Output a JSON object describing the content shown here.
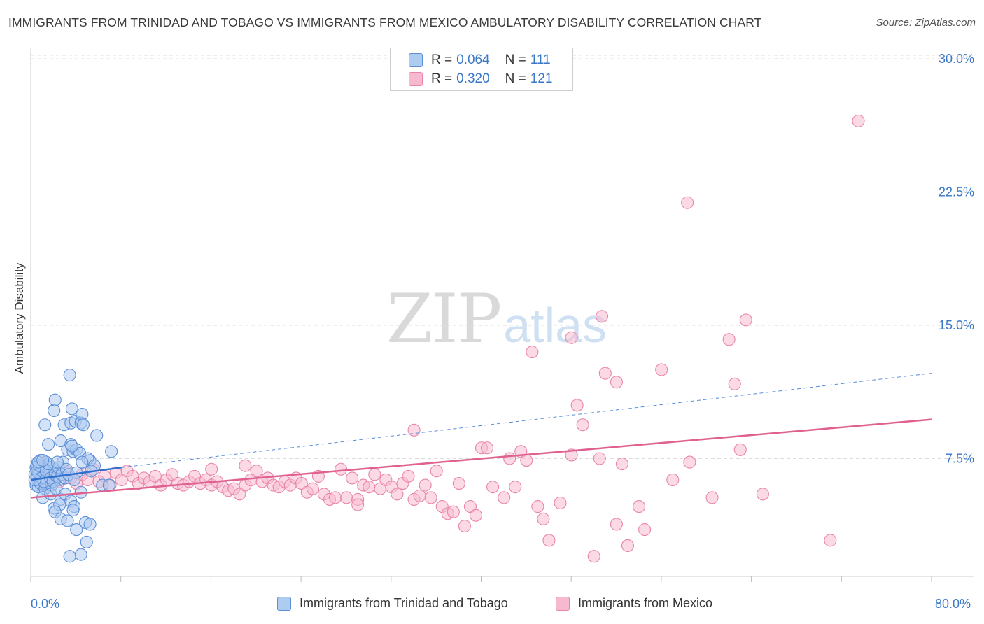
{
  "title": "IMMIGRANTS FROM TRINIDAD AND TOBAGO VS IMMIGRANTS FROM MEXICO AMBULATORY DISABILITY CORRELATION CHART",
  "source": "Source: ZipAtlas.com",
  "watermark": {
    "zip": "ZIP",
    "atlas": "atlas"
  },
  "legend": {
    "rows": [
      {
        "r_label": "R =",
        "r_value": "0.064",
        "n_label": "N =",
        "n_value": "111"
      },
      {
        "r_label": "R =",
        "r_value": "0.320",
        "n_label": "N =",
        "n_value": "121"
      }
    ]
  },
  "colors": {
    "blue_fill": "#aecbf0",
    "blue_stroke": "#5b8fd6",
    "blue_line": "#2e6fcf",
    "pink_fill": "#f7b9cf",
    "pink_stroke": "#e985aa",
    "pink_line": "#e0608f",
    "axis_text": "#3b78c8",
    "grid": "#dddddd"
  },
  "chart_data": {
    "type": "scatter",
    "title": "IMMIGRANTS FROM TRINIDAD AND TOBAGO VS IMMIGRANTS FROM MEXICO AMBULATORY DISABILITY CORRELATION CHART",
    "xlabel": "",
    "ylabel": "Ambulatory Disability",
    "xlim": [
      0,
      80
    ],
    "ylim": [
      0,
      31
    ],
    "x_tick_labels": [
      "0.0%",
      "80.0%"
    ],
    "y_ticks": [
      7.5,
      15.0,
      22.5,
      30.0
    ],
    "y_tick_labels": [
      "7.5%",
      "15.0%",
      "22.5%",
      "30.0%"
    ],
    "grid": true,
    "legend_position": "top-center",
    "series": [
      {
        "name": "Immigrants from Trinidad and Tobago",
        "r": 0.064,
        "n": 111,
        "trend": {
          "x0": 0,
          "y0": 6.3,
          "x1": 8,
          "y1": 7.0,
          "dashed_to_x": 80,
          "dashed_to_y": 12.3
        },
        "points": [
          [
            0.3,
            6.6
          ],
          [
            0.5,
            7.2
          ],
          [
            0.6,
            6.2
          ],
          [
            0.7,
            6.9
          ],
          [
            0.8,
            7.4
          ],
          [
            0.9,
            6.4
          ],
          [
            1.0,
            7.1
          ],
          [
            1.1,
            6.0
          ],
          [
            1.2,
            6.7
          ],
          [
            1.3,
            7.3
          ],
          [
            0.4,
            6.0
          ],
          [
            0.6,
            5.9
          ],
          [
            0.8,
            6.8
          ],
          [
            1.0,
            6.3
          ],
          [
            1.2,
            6.1
          ],
          [
            1.4,
            6.9
          ],
          [
            1.5,
            6.5
          ],
          [
            1.6,
            7.1
          ],
          [
            1.7,
            6.2
          ],
          [
            1.8,
            6.8
          ],
          [
            0.5,
            6.5
          ],
          [
            0.7,
            6.3
          ],
          [
            0.9,
            7.0
          ],
          [
            1.1,
            6.6
          ],
          [
            1.3,
            6.4
          ],
          [
            1.5,
            6.1
          ],
          [
            1.7,
            7.0
          ],
          [
            1.9,
            6.5
          ],
          [
            2.0,
            6.3
          ],
          [
            2.1,
            6.9
          ],
          [
            0.4,
            7.0
          ],
          [
            0.6,
            6.7
          ],
          [
            0.8,
            6.1
          ],
          [
            1.0,
            6.9
          ],
          [
            1.2,
            5.8
          ],
          [
            1.4,
            6.3
          ],
          [
            1.6,
            6.6
          ],
          [
            1.8,
            6.0
          ],
          [
            2.0,
            6.7
          ],
          [
            2.2,
            6.4
          ],
          [
            0.5,
            6.8
          ],
          [
            0.7,
            7.1
          ],
          [
            0.9,
            6.4
          ],
          [
            1.1,
            6.2
          ],
          [
            1.3,
            6.8
          ],
          [
            1.5,
            7.2
          ],
          [
            1.7,
            6.4
          ],
          [
            1.9,
            6.2
          ],
          [
            2.1,
            6.6
          ],
          [
            2.3,
            6.5
          ],
          [
            2.4,
            7.0
          ],
          [
            2.5,
            6.3
          ],
          [
            2.7,
            6.6
          ],
          [
            2.8,
            7.3
          ],
          [
            3.0,
            6.4
          ],
          [
            3.1,
            6.9
          ],
          [
            3.3,
            6.6
          ],
          [
            0.3,
            6.3
          ],
          [
            0.6,
            7.3
          ],
          [
            1.0,
            7.4
          ],
          [
            1.2,
            9.4
          ],
          [
            2.0,
            10.2
          ],
          [
            2.1,
            10.8
          ],
          [
            2.9,
            9.4
          ],
          [
            3.5,
            9.5
          ],
          [
            3.6,
            10.3
          ],
          [
            3.9,
            9.6
          ],
          [
            4.4,
            9.5
          ],
          [
            4.5,
            10.0
          ],
          [
            3.2,
            8.0
          ],
          [
            3.7,
            7.9
          ],
          [
            2.6,
            8.5
          ],
          [
            3.5,
            8.3
          ],
          [
            4.0,
            8.0
          ],
          [
            4.3,
            7.8
          ],
          [
            4.6,
            9.4
          ],
          [
            5.8,
            8.8
          ],
          [
            7.1,
            7.9
          ],
          [
            5.2,
            7.4
          ],
          [
            3.4,
            12.2
          ],
          [
            3.6,
            8.2
          ],
          [
            2.3,
            7.3
          ],
          [
            1.5,
            8.3
          ],
          [
            5.0,
            7.5
          ],
          [
            4.5,
            7.3
          ],
          [
            4.0,
            6.7
          ],
          [
            3.8,
            6.3
          ],
          [
            5.6,
            7.1
          ],
          [
            6.3,
            6.0
          ],
          [
            5.3,
            6.8
          ],
          [
            1.0,
            5.3
          ],
          [
            1.7,
            5.5
          ],
          [
            2.2,
            5.8
          ],
          [
            2.6,
            5.2
          ],
          [
            3.0,
            5.5
          ],
          [
            3.5,
            5.1
          ],
          [
            4.4,
            5.6
          ],
          [
            2.0,
            4.7
          ],
          [
            2.5,
            4.9
          ],
          [
            3.8,
            4.8
          ],
          [
            2.1,
            4.5
          ],
          [
            2.6,
            4.1
          ],
          [
            3.2,
            4.0
          ],
          [
            3.7,
            4.6
          ],
          [
            4.8,
            3.9
          ],
          [
            5.2,
            3.8
          ],
          [
            4.0,
            3.5
          ],
          [
            4.9,
            2.8
          ],
          [
            4.4,
            2.1
          ],
          [
            3.4,
            2.0
          ],
          [
            6.9,
            6.0
          ]
        ]
      },
      {
        "name": "Immigrants from Mexico",
        "r": 0.32,
        "n": 121,
        "trend": {
          "x0": 0,
          "y0": 5.3,
          "x1": 80,
          "y1": 9.7
        },
        "points": [
          [
            1.0,
            6.4
          ],
          [
            1.5,
            6.0
          ],
          [
            2.0,
            6.7
          ],
          [
            2.5,
            6.2
          ],
          [
            3.0,
            6.8
          ],
          [
            3.5,
            6.4
          ],
          [
            4.0,
            6.1
          ],
          [
            4.5,
            6.6
          ],
          [
            5.0,
            6.3
          ],
          [
            5.5,
            6.9
          ],
          [
            6.0,
            6.2
          ],
          [
            6.5,
            6.5
          ],
          [
            7.0,
            6.0
          ],
          [
            7.5,
            6.7
          ],
          [
            8.0,
            6.3
          ],
          [
            8.5,
            6.8
          ],
          [
            9.0,
            6.5
          ],
          [
            9.5,
            6.1
          ],
          [
            10.0,
            6.4
          ],
          [
            10.5,
            6.2
          ],
          [
            11.0,
            6.5
          ],
          [
            11.5,
            6.0
          ],
          [
            12.0,
            6.3
          ],
          [
            12.5,
            6.6
          ],
          [
            13.0,
            6.1
          ],
          [
            13.5,
            6.0
          ],
          [
            14.0,
            6.2
          ],
          [
            14.5,
            6.5
          ],
          [
            15.0,
            6.1
          ],
          [
            15.5,
            6.3
          ],
          [
            16.0,
            6.0
          ],
          [
            16.5,
            6.2
          ],
          [
            17.0,
            5.9
          ],
          [
            17.5,
            5.7
          ],
          [
            18.0,
            5.8
          ],
          [
            18.5,
            5.5
          ],
          [
            19.0,
            6.0
          ],
          [
            19.5,
            6.3
          ],
          [
            20.0,
            6.8
          ],
          [
            20.5,
            6.2
          ],
          [
            21.0,
            6.4
          ],
          [
            21.5,
            6.0
          ],
          [
            22.0,
            5.9
          ],
          [
            22.5,
            6.2
          ],
          [
            23.0,
            6.0
          ],
          [
            23.5,
            6.4
          ],
          [
            24.0,
            6.1
          ],
          [
            24.5,
            5.6
          ],
          [
            25.0,
            5.8
          ],
          [
            25.5,
            6.5
          ],
          [
            26.0,
            5.5
          ],
          [
            26.5,
            5.2
          ],
          [
            27.0,
            5.3
          ],
          [
            27.5,
            6.9
          ],
          [
            28.0,
            5.3
          ],
          [
            28.5,
            6.4
          ],
          [
            29.0,
            5.2
          ],
          [
            29.5,
            6.0
          ],
          [
            30.0,
            5.9
          ],
          [
            30.5,
            6.6
          ],
          [
            31.0,
            5.8
          ],
          [
            31.5,
            6.3
          ],
          [
            32.0,
            5.9
          ],
          [
            32.5,
            5.5
          ],
          [
            33.0,
            6.1
          ],
          [
            33.5,
            6.5
          ],
          [
            34.0,
            5.2
          ],
          [
            34.5,
            5.4
          ],
          [
            35.0,
            6.0
          ],
          [
            35.5,
            5.3
          ],
          [
            36.0,
            6.8
          ],
          [
            36.5,
            4.8
          ],
          [
            37.0,
            4.4
          ],
          [
            37.5,
            4.5
          ],
          [
            38.0,
            6.1
          ],
          [
            38.5,
            3.7
          ],
          [
            39.0,
            4.8
          ],
          [
            39.5,
            4.3
          ],
          [
            40.0,
            8.1
          ],
          [
            40.5,
            8.1
          ],
          [
            41.0,
            5.9
          ],
          [
            42.0,
            5.3
          ],
          [
            42.5,
            7.5
          ],
          [
            43.0,
            5.9
          ],
          [
            43.5,
            7.9
          ],
          [
            44.0,
            7.4
          ],
          [
            45.0,
            4.8
          ],
          [
            45.5,
            4.1
          ],
          [
            46.0,
            2.9
          ],
          [
            47.0,
            5.0
          ],
          [
            48.0,
            7.7
          ],
          [
            48.5,
            10.5
          ],
          [
            49.0,
            9.4
          ],
          [
            50.0,
            2.0
          ],
          [
            50.5,
            7.5
          ],
          [
            51.0,
            12.3
          ],
          [
            52.0,
            3.8
          ],
          [
            52.5,
            7.2
          ],
          [
            53.0,
            2.6
          ],
          [
            54.0,
            4.8
          ],
          [
            54.5,
            3.5
          ],
          [
            56.0,
            12.5
          ],
          [
            57.0,
            6.3
          ],
          [
            58.5,
            7.3
          ],
          [
            60.5,
            5.3
          ],
          [
            62.0,
            14.2
          ],
          [
            62.5,
            11.7
          ],
          [
            63.0,
            8.0
          ],
          [
            63.5,
            15.3
          ],
          [
            65.0,
            5.5
          ],
          [
            71.0,
            2.9
          ],
          [
            29.0,
            4.9
          ],
          [
            34.0,
            9.1
          ],
          [
            44.5,
            13.5
          ],
          [
            48.0,
            14.3
          ],
          [
            52.0,
            11.8
          ],
          [
            50.7,
            15.5
          ],
          [
            58.3,
            21.9
          ],
          [
            73.5,
            26.5
          ],
          [
            16.0,
            6.9
          ],
          [
            19.0,
            7.1
          ]
        ]
      }
    ]
  },
  "bottom_legend": [
    {
      "label": "Immigrants from Trinidad and Tobago"
    },
    {
      "label": "Immigrants from Mexico"
    }
  ]
}
